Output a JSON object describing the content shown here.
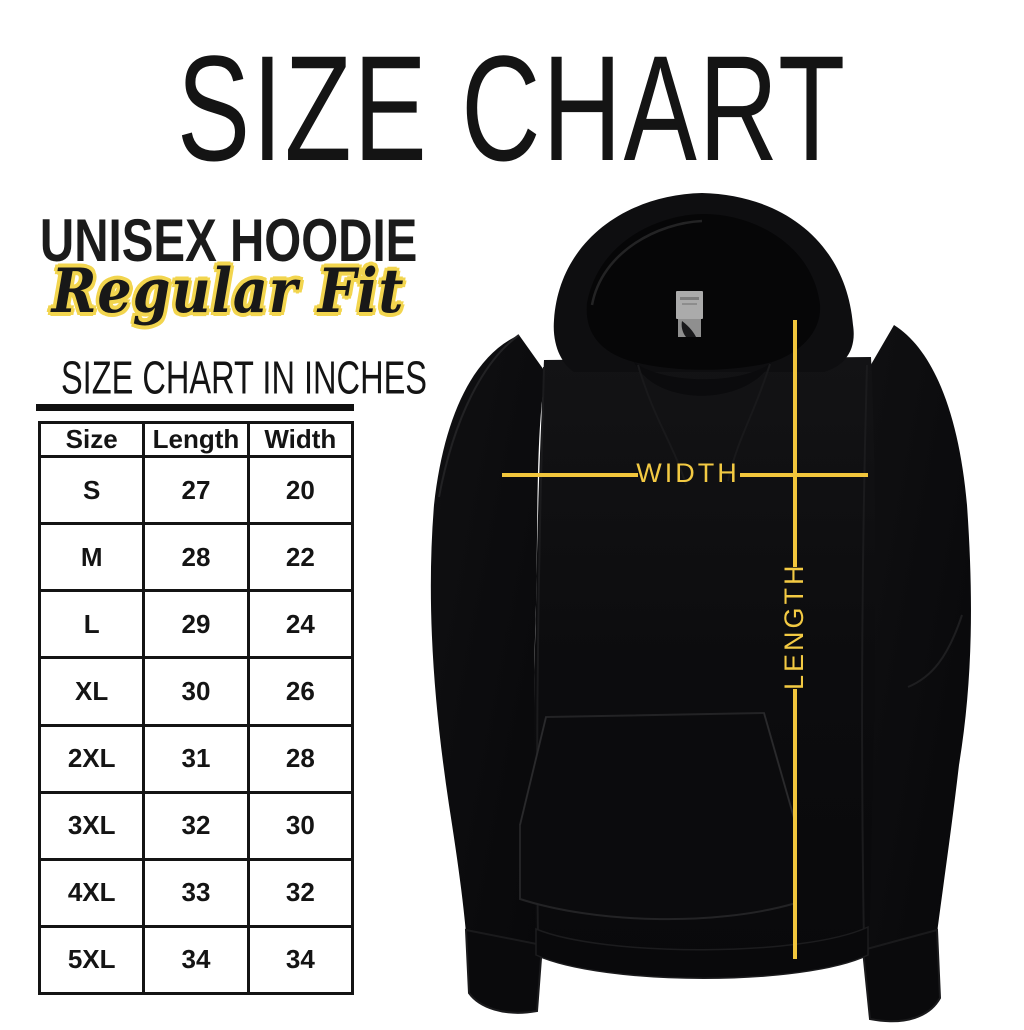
{
  "title": "SIZE CHART",
  "product": {
    "name": "UNISEX HOODIE",
    "fit": "Regular Fit"
  },
  "table_heading": "SIZE CHART IN INCHES",
  "size_table": {
    "columns": [
      "Size",
      "Length",
      "Width"
    ],
    "rows": [
      [
        "S",
        "27",
        "20"
      ],
      [
        "M",
        "28",
        "22"
      ],
      [
        "L",
        "29",
        "24"
      ],
      [
        "XL",
        "30",
        "26"
      ],
      [
        "2XL",
        "31",
        "28"
      ],
      [
        "3XL",
        "32",
        "30"
      ],
      [
        "4XL",
        "33",
        "32"
      ],
      [
        "5XL",
        "34",
        "34"
      ]
    ]
  },
  "measurements": {
    "width_label": "WIDTH",
    "length_label": "LENGTH"
  },
  "chart_data": {
    "type": "table",
    "title": "SIZE CHART",
    "subtitle": "UNISEX HOODIE - Regular Fit",
    "units": "inches",
    "columns": [
      "Size",
      "Length",
      "Width"
    ],
    "rows": [
      [
        "S",
        27,
        20
      ],
      [
        "M",
        28,
        22
      ],
      [
        "L",
        29,
        24
      ],
      [
        "XL",
        30,
        26
      ],
      [
        "2XL",
        31,
        28
      ],
      [
        "3XL",
        32,
        30
      ],
      [
        "4XL",
        33,
        32
      ],
      [
        "5XL",
        34,
        34
      ]
    ]
  },
  "colors": {
    "accent_yellow": "#f2c63c",
    "script_outline_yellow": "#f2d54e",
    "text_black": "#141414",
    "hoodie_black": "#0c0c0e",
    "neck_tag_gray": "#ababab",
    "background": "#ffffff"
  }
}
